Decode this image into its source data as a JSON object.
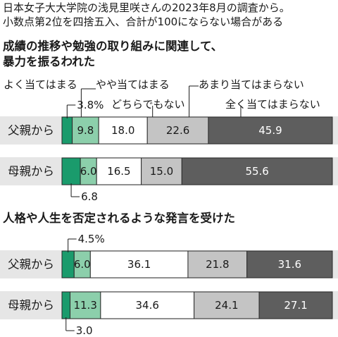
{
  "notes": [
    "日本女子大大学院の浅見里咲さんの2023年8月の調査から。",
    "小数点第2位を四捨五入、合計が100にならない場合がある"
  ],
  "colors": {
    "very": "#1a9b6c",
    "somewhat": "#8ccfab",
    "neutral": "#ffffff",
    "not_much": "#c4c4c4",
    "not_at_all": "#5e5e5e",
    "frame": "#2a2a2a",
    "band": "#e6e6e6"
  },
  "chart_data": [
    {
      "type": "bar",
      "orientation": "horizontal",
      "stacked": true,
      "title": "成績の推移や勉強の取り組みに関連して、暴力を振るわれた",
      "categories": [
        "父親から",
        "母親から"
      ],
      "series": [
        {
          "name": "よく当てはまる",
          "values": [
            3.8,
            6.8
          ]
        },
        {
          "name": "やや当てはまる",
          "values": [
            9.8,
            6.0
          ]
        },
        {
          "name": "どちらでもない",
          "values": [
            18.0,
            16.5
          ]
        },
        {
          "name": "あまり当てはまらない",
          "values": [
            22.6,
            15.0
          ]
        },
        {
          "name": "全く当てはまらない",
          "values": [
            45.9,
            55.6
          ]
        }
      ],
      "value_labels": [
        [
          "3.8%",
          "9.8",
          "18.0",
          "22.6",
          "45.9"
        ],
        [
          "6.8",
          "6.0",
          "16.5",
          "15.0",
          "55.6"
        ]
      ],
      "legend": "above"
    },
    {
      "type": "bar",
      "orientation": "horizontal",
      "stacked": true,
      "title": "人格や人生を否定されるような発言を受けた",
      "categories": [
        "父親から",
        "母親から"
      ],
      "series": [
        {
          "name": "よく当てはまる",
          "values": [
            4.5,
            3.0
          ]
        },
        {
          "name": "やや当てはまる",
          "values": [
            6.0,
            11.3
          ]
        },
        {
          "name": "どちらでもない",
          "values": [
            36.1,
            34.6
          ]
        },
        {
          "name": "あまり当てはまらない",
          "values": [
            21.8,
            24.1
          ]
        },
        {
          "name": "全く当てはまらない",
          "values": [
            31.6,
            27.1
          ]
        }
      ],
      "value_labels": [
        [
          "4.5%",
          "6.0",
          "36.1",
          "21.8",
          "31.6"
        ],
        [
          "3.0",
          "11.3",
          "34.6",
          "24.1",
          "27.1"
        ]
      ]
    }
  ]
}
